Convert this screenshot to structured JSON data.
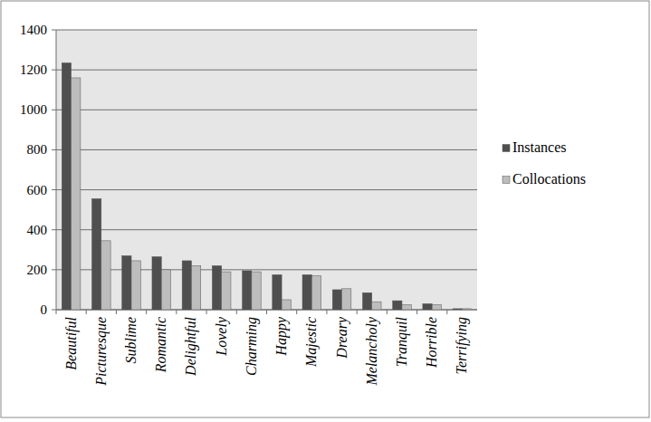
{
  "chart_data": {
    "type": "bar",
    "categories": [
      "Beautiful",
      "Picturesque",
      "Sublime",
      "Romantic",
      "Delightful",
      "Lovely",
      "Charming",
      "Happy",
      "Majestic",
      "Dreary",
      "Melancholy",
      "Tranquil",
      "Horrible",
      "Terrifying"
    ],
    "series": [
      {
        "name": "Instances",
        "color": "#4f4f4f",
        "values": [
          1235,
          555,
          270,
          265,
          245,
          220,
          195,
          175,
          175,
          100,
          85,
          45,
          30,
          5
        ]
      },
      {
        "name": "Collocations",
        "color": "#bdbdbd",
        "values": [
          1160,
          345,
          245,
          200,
          220,
          190,
          190,
          50,
          170,
          105,
          40,
          25,
          25,
          5
        ]
      }
    ],
    "ylim": [
      0,
      1400
    ],
    "yticks": [
      0,
      200,
      400,
      600,
      800,
      1000,
      1200,
      1400
    ],
    "grid": true,
    "legend": "right"
  }
}
